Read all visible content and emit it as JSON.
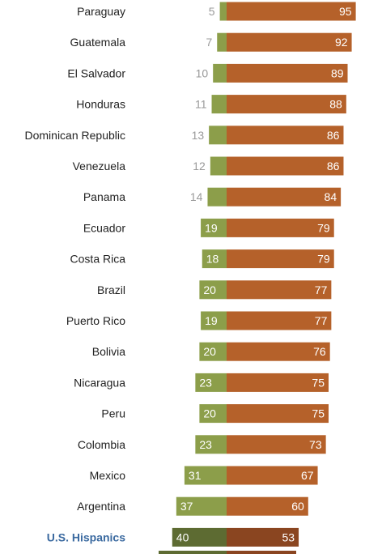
{
  "chart_data": {
    "type": "bar",
    "orientation": "horizontal-diverging",
    "categories": [
      "Paraguay",
      "Guatemala",
      "El Salvador",
      "Honduras",
      "Dominican Republic",
      "Venezuela",
      "Panama",
      "Ecuador",
      "Costa Rica",
      "Brazil",
      "Puerto Rico",
      "Bolivia",
      "Nicaragua",
      "Peru",
      "Colombia",
      "Mexico",
      "Argentina",
      "U.S. Hispanics"
    ],
    "highlight_category": "U.S. Hispanics",
    "series": [
      {
        "values": [
          5,
          7,
          10,
          11,
          13,
          12,
          14,
          19,
          18,
          20,
          19,
          20,
          23,
          20,
          23,
          31,
          37,
          40
        ]
      },
      {
        "values": [
          95,
          92,
          89,
          88,
          86,
          86,
          84,
          79,
          79,
          77,
          77,
          76,
          75,
          75,
          73,
          67,
          60,
          53
        ]
      }
    ],
    "colors": {
      "series_left": "#8c9e4a",
      "series_right": "#b5612a",
      "series_left_highlight": "#5d6b32",
      "series_right_highlight": "#8a4520",
      "label_dark": "#222222",
      "label_highlight": "#3b6aa0",
      "value_outside": "#9a9a9a",
      "value_inside": "#ffffff"
    }
  }
}
